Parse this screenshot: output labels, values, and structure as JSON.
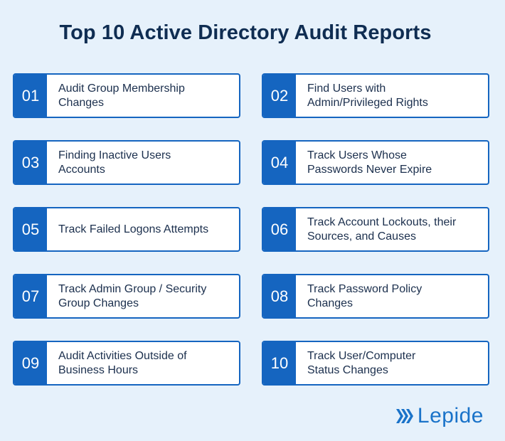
{
  "title": "Top 10 Active Directory Audit Reports",
  "accent_color": "#1565c0",
  "reports": [
    {
      "number": "01",
      "label": "Audit Group Membership\nChanges"
    },
    {
      "number": "02",
      "label": "Find Users with\nAdmin/Privileged Rights"
    },
    {
      "number": "03",
      "label": "Finding Inactive Users\nAccounts"
    },
    {
      "number": "04",
      "label": "Track Users Whose\nPasswords Never Expire"
    },
    {
      "number": "05",
      "label": "Track Failed Logons Attempts"
    },
    {
      "number": "06",
      "label": "Track Account Lockouts, their\nSources, and Causes"
    },
    {
      "number": "07",
      "label": "Track Admin Group / Security\nGroup Changes"
    },
    {
      "number": "08",
      "label": "Track Password Policy\nChanges"
    },
    {
      "number": "09",
      "label": "Audit Activities Outside of\nBusiness Hours"
    },
    {
      "number": "10",
      "label": "Track User/Computer\nStatus Changes"
    }
  ],
  "logo": {
    "text": "Lepide",
    "icon": "lepide-logo-icon"
  }
}
